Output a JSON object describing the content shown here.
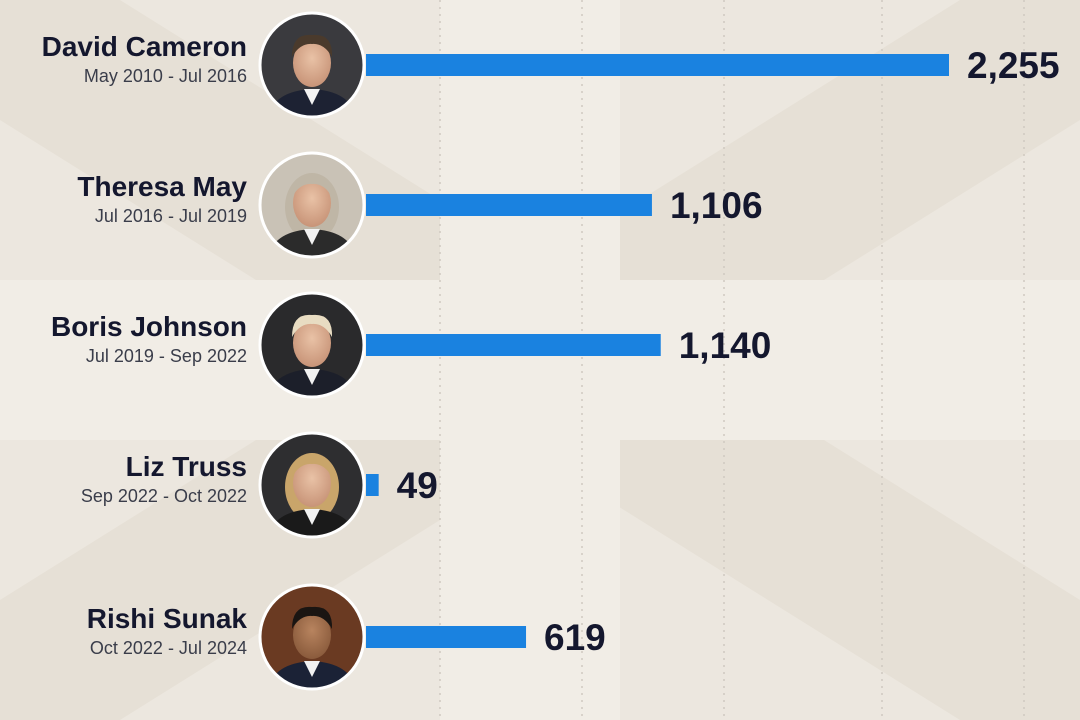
{
  "chart_data": {
    "type": "bar",
    "orientation": "horizontal",
    "bar_color": "#1a82e0",
    "categories": [
      "David Cameron",
      "Theresa May",
      "Boris Johnson",
      "Liz Truss",
      "Rishi Sunak"
    ],
    "subtitles": [
      "May 2010 - Jul 2016",
      "Jul 2016 - Jul 2019",
      "Jul 2019 - Sep 2022",
      "Sep 2022 - Oct 2022",
      "Oct 2022 - Jul 2024"
    ],
    "values": [
      2255,
      1106,
      1140,
      49,
      619
    ],
    "value_labels": [
      "2,255",
      "1,106",
      "1,140",
      "49",
      "619"
    ],
    "portrait_icons": [
      "david-cameron-portrait",
      "theresa-may-portrait",
      "boris-johnson-portrait",
      "liz-truss-portrait",
      "rishi-sunak-portrait"
    ],
    "xlim": [
      0,
      2255
    ],
    "grid": "vertical dotted",
    "title": "",
    "xlabel": "",
    "ylabel": ""
  }
}
